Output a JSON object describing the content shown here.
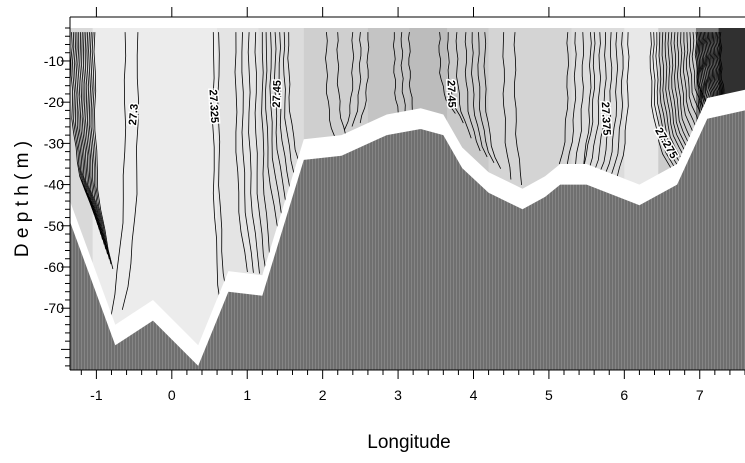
{
  "chart_data": {
    "type": "contour",
    "xlabel": "Longitude",
    "ylabel": "D e p t h  ( m )",
    "xlim": [
      -1.35,
      7.6
    ],
    "ylim": [
      -85,
      -2
    ],
    "x_ticks": [
      -1,
      0,
      1,
      2,
      3,
      4,
      5,
      6,
      7
    ],
    "y_ticks": [
      -10,
      -20,
      -30,
      -40,
      -50,
      -60,
      -70
    ],
    "contour_labels": [
      {
        "text": "27.3",
        "x": -0.5,
        "y": -23,
        "angle": -85
      },
      {
        "text": "27.325",
        "x": 0.55,
        "y": -21,
        "angle": 87
      },
      {
        "text": "27.45",
        "x": 1.4,
        "y": -18,
        "angle": -88
      },
      {
        "text": "27.45",
        "x": 3.7,
        "y": -18,
        "angle": 88
      },
      {
        "text": "27.375",
        "x": 5.75,
        "y": -24,
        "angle": 87
      },
      {
        "text": "27.275",
        "x": 6.55,
        "y": -30,
        "angle": 60
      }
    ],
    "seafloor": [
      {
        "x": -1.35,
        "depth": -49
      },
      {
        "x": -0.75,
        "depth": -79
      },
      {
        "x": -0.25,
        "depth": -73
      },
      {
        "x": 0.35,
        "depth": -84
      },
      {
        "x": 0.75,
        "depth": -66
      },
      {
        "x": 1.2,
        "depth": -67
      },
      {
        "x": 1.75,
        "depth": -34
      },
      {
        "x": 2.25,
        "depth": -33
      },
      {
        "x": 2.85,
        "depth": -28
      },
      {
        "x": 3.3,
        "depth": -26.5
      },
      {
        "x": 3.6,
        "depth": -28
      },
      {
        "x": 3.85,
        "depth": -36
      },
      {
        "x": 4.2,
        "depth": -42
      },
      {
        "x": 4.65,
        "depth": -46
      },
      {
        "x": 4.95,
        "depth": -43
      },
      {
        "x": 5.15,
        "depth": -40
      },
      {
        "x": 5.5,
        "depth": -40
      },
      {
        "x": 6.2,
        "depth": -45
      },
      {
        "x": 6.7,
        "depth": -40
      },
      {
        "x": 7.1,
        "depth": -24
      },
      {
        "x": 7.6,
        "depth": -22
      }
    ],
    "grid": false
  }
}
